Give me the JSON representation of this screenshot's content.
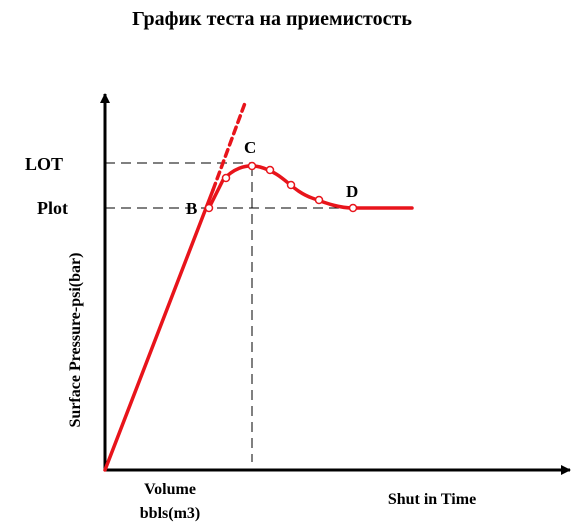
{
  "title": "График теста на приемистость",
  "y_axis_label": "Surface Pressure-psi(bar)",
  "x_axis_label_volume_1": "Volume",
  "x_axis_label_volume_2": "bbls(m3)",
  "x_axis_label_time": "Shut in Time",
  "level_labels": {
    "lot": "LOT",
    "plot": "Plot"
  },
  "point_labels": {
    "b": "B",
    "c": "C",
    "d": "D"
  },
  "colors": {
    "curve": "#e8141b",
    "axis": "#000000",
    "guide": "#000000",
    "marker_fill": "#ffffff"
  }
}
